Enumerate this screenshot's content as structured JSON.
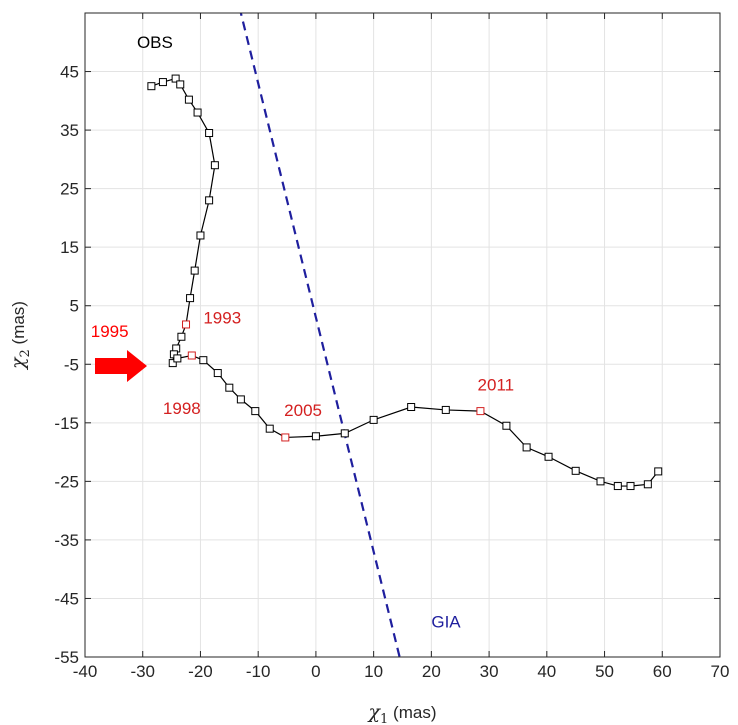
{
  "chart_data": {
    "type": "line",
    "xlabel": {
      "symbol": "χ",
      "sub": "1",
      "unit": "(mas)"
    },
    "ylabel": {
      "symbol": "χ",
      "sub": "2",
      "unit": "(mas)"
    },
    "xlim": [
      -40,
      70
    ],
    "ylim": [
      -55,
      55
    ],
    "xticks": [
      -40,
      -30,
      -20,
      -10,
      0,
      10,
      20,
      30,
      40,
      50,
      60,
      70
    ],
    "yticks": [
      45,
      35,
      25,
      15,
      5,
      -5,
      -15,
      -25,
      -35,
      -45,
      -55
    ],
    "grid": true,
    "series": [
      {
        "name": "OBS",
        "color": "#000000",
        "marker": "square",
        "x": [
          -28.5,
          -26.5,
          -24.3,
          -23.5,
          -22,
          -20.5,
          -18.5,
          -17.5,
          -18.5,
          -20,
          -21,
          -21.8,
          -22.5,
          -23.3,
          -24.2,
          -24.6,
          -24.8,
          -24,
          -21.5,
          -19.5,
          -17,
          -15,
          -13,
          -10.5,
          -8,
          -5.3,
          0,
          5,
          10,
          16.5,
          22.5,
          28.5,
          33,
          36.5,
          40.3,
          45,
          49.3,
          52.3,
          54.5,
          57.5,
          59.3
        ],
        "y": [
          42.5,
          43.2,
          43.8,
          42.8,
          40.2,
          38,
          34.5,
          29,
          23,
          17,
          11,
          6.3,
          1.8,
          -0.3,
          -2.3,
          -3.3,
          -4.8,
          -4,
          -3.5,
          -4.3,
          -6.5,
          -9,
          -11,
          -13,
          -16,
          -17.5,
          -17.3,
          -16.8,
          -14.5,
          -12.3,
          -12.8,
          -13,
          -15.5,
          -19.2,
          -20.8,
          -23.2,
          -25,
          -25.8,
          -25.8,
          -25.5,
          -23.3
        ]
      },
      {
        "name": "GIA",
        "color": "#1f1f9e",
        "dash": true,
        "x": [
          -14.5,
          14.5
        ],
        "y": [
          61,
          -55
        ]
      }
    ],
    "highlighted_points": [
      {
        "year": "1993",
        "x": -22.5,
        "y": 1.8
      },
      {
        "year": "1998",
        "x": -21.5,
        "y": -3.5
      },
      {
        "year": "2005",
        "x": -5.3,
        "y": -17.5
      },
      {
        "year": "2011",
        "x": 28.5,
        "y": -13
      }
    ],
    "annotations": [
      {
        "text": "OBS",
        "color": "#000000",
        "x": -31,
        "y": 49
      },
      {
        "text": "GIA",
        "color": "#1f1f9e",
        "x": 20,
        "y": -50
      },
      {
        "text": "1993",
        "color": "#d42020",
        "x": -19.5,
        "y": 2
      },
      {
        "text": "1998",
        "color": "#d42020",
        "x": -26.5,
        "y": -13.5
      },
      {
        "text": "2005",
        "color": "#d42020",
        "x": -5.5,
        "y": -13.8
      },
      {
        "text": "2011",
        "color": "#d42020",
        "x": 28,
        "y": -9.5
      },
      {
        "text": "1995",
        "color": "#ff0000",
        "x": -39,
        "y": -0.3
      }
    ],
    "colors": {
      "highlight": "#d42020",
      "arrow": "#ff0000",
      "frame": "#8b1a1a"
    }
  }
}
